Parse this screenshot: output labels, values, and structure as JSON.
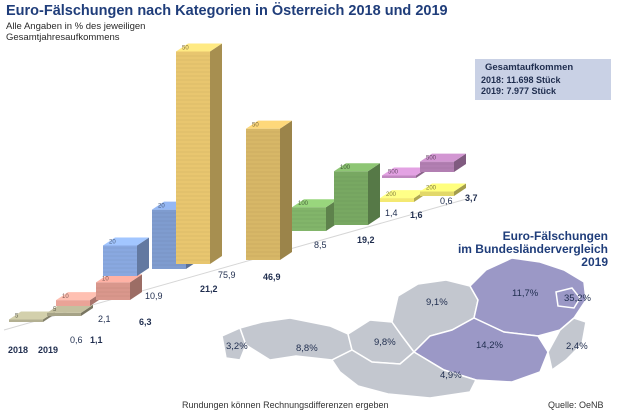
{
  "title": "Euro-Fälschungen nach Kategorien in Österreich 2018 und 2019",
  "subtitle": "Alle Angaben in % des jeweiligen Gesamtjahresaufkommens",
  "total_box": {
    "heading": "Gesamtaufkommen",
    "line_2018": "2018: 11.698 Stück",
    "line_2019": "2019: 7.977 Stück"
  },
  "map": {
    "title_line1": "Euro-Fälschungen",
    "title_line2": "im Bundesländervergleich",
    "title_line3": "2019",
    "regions": [
      {
        "name": "Vorarlberg",
        "value": "3,2%"
      },
      {
        "name": "Tirol",
        "value": "8,8%"
      },
      {
        "name": "Salzburg",
        "value": "9,8%"
      },
      {
        "name": "Oberösterreich",
        "value": "9,1%"
      },
      {
        "name": "Niederösterreich",
        "value": "11,7%"
      },
      {
        "name": "Wien",
        "value": "35,2%"
      },
      {
        "name": "Steiermark",
        "value": "14,2%"
      },
      {
        "name": "Burgenland",
        "value": "2,4%"
      },
      {
        "name": "Kärnten",
        "value": "4,9%"
      }
    ]
  },
  "footer_note": "Rundungen können Rechnungsdifferenzen ergeben",
  "source": "Quelle: OeNB",
  "chart_data": {
    "type": "bar",
    "title": "Euro-Fälschungen nach Kategorien in Österreich 2018 und 2019",
    "categories": [
      "5",
      "10",
      "20",
      "50",
      "100",
      "200",
      "500"
    ],
    "series": [
      {
        "name": "2018",
        "values": [
          0.6,
          2.1,
          10.9,
          75.9,
          8.5,
          1.4,
          0.6
        ],
        "labels": [
          "",
          "2,1",
          "10,9",
          "75,9",
          "8,5",
          "1,4",
          "0,6"
        ]
      },
      {
        "name": "2019",
        "values": [
          1.1,
          6.3,
          21.2,
          46.9,
          19.2,
          1.6,
          3.7
        ],
        "labels": [
          "1,1",
          "6,3",
          "21,2",
          "46,9",
          "19,2",
          "1,6",
          "3,7"
        ]
      }
    ],
    "extra_labels": [
      "0,6"
    ],
    "colors": {
      "5": "#a6a387",
      "10": "#d9978c",
      "20": "#7f9ccf",
      "50": "#d7b767",
      "100": "#78a862",
      "200": "#e2d86a",
      "500": "#b27fb2"
    },
    "map_colors": {
      "high": "#9b98c6",
      "low": "#c3c7cf",
      "border": "#ffffff"
    }
  }
}
